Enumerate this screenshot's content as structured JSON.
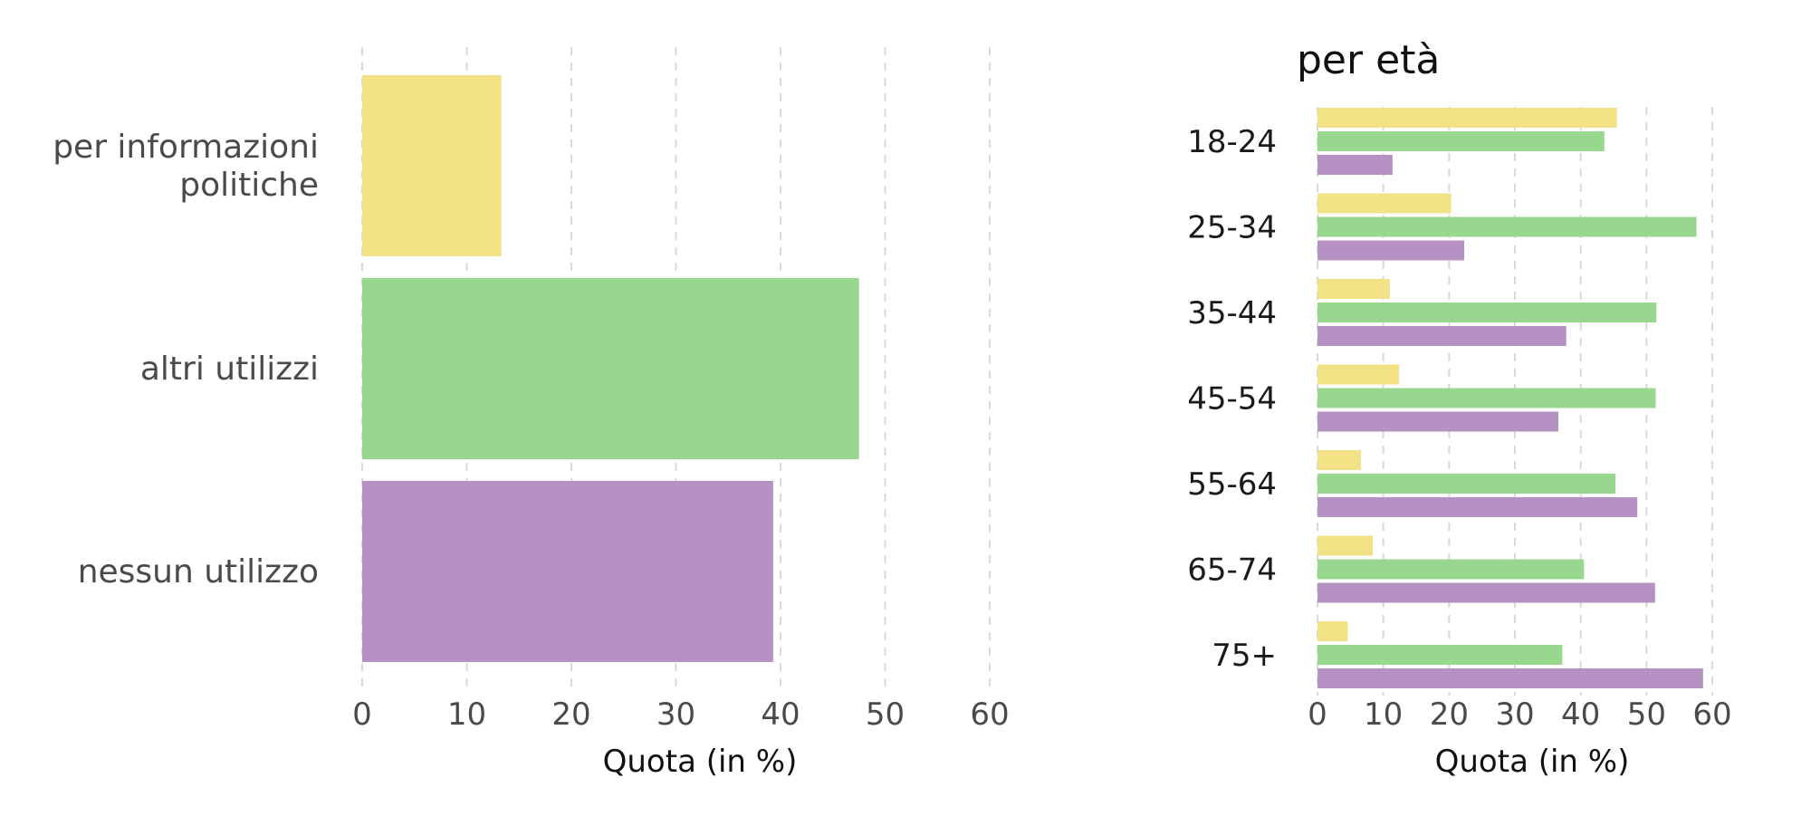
{
  "chart_data": [
    {
      "type": "bar",
      "orientation": "horizontal",
      "title": "",
      "categories": [
        "per informazioni politiche",
        "altri utilizzi",
        "nessun utilizzo"
      ],
      "category_label_lines": [
        [
          "per informazioni",
          "politiche"
        ],
        [
          "altri utilizzi"
        ],
        [
          "nessun utilizzo"
        ]
      ],
      "values": [
        13.3,
        47.5,
        39.3
      ],
      "colors": [
        "#f2e285",
        "#98d78e",
        "#b591c4"
      ],
      "xlabel": "Quota (in %)",
      "xlim": [
        0,
        60
      ],
      "xticks": [
        0,
        10,
        20,
        30,
        40,
        50,
        60
      ],
      "grid": true,
      "legend": "none"
    },
    {
      "type": "bar",
      "orientation": "horizontal",
      "title": "per età",
      "categories": [
        "18-24",
        "25-34",
        "35-44",
        "45-54",
        "55-64",
        "65-74",
        "75+"
      ],
      "series": [
        {
          "values": [
            45.5,
            20.3,
            11.0,
            12.4,
            6.6,
            8.4,
            4.6
          ],
          "color": "#f2e285"
        },
        {
          "values": [
            43.6,
            57.6,
            51.5,
            51.4,
            45.3,
            40.5,
            37.2
          ],
          "color": "#98d78e"
        },
        {
          "values": [
            11.4,
            22.3,
            37.8,
            36.6,
            48.6,
            51.3,
            58.6
          ],
          "color": "#b591c4"
        }
      ],
      "xlabel": "Quota (in %)",
      "xlim": [
        0,
        60
      ],
      "xticks": [
        0,
        10,
        20,
        30,
        40,
        50,
        60
      ],
      "grid": true,
      "legend": "none"
    }
  ]
}
